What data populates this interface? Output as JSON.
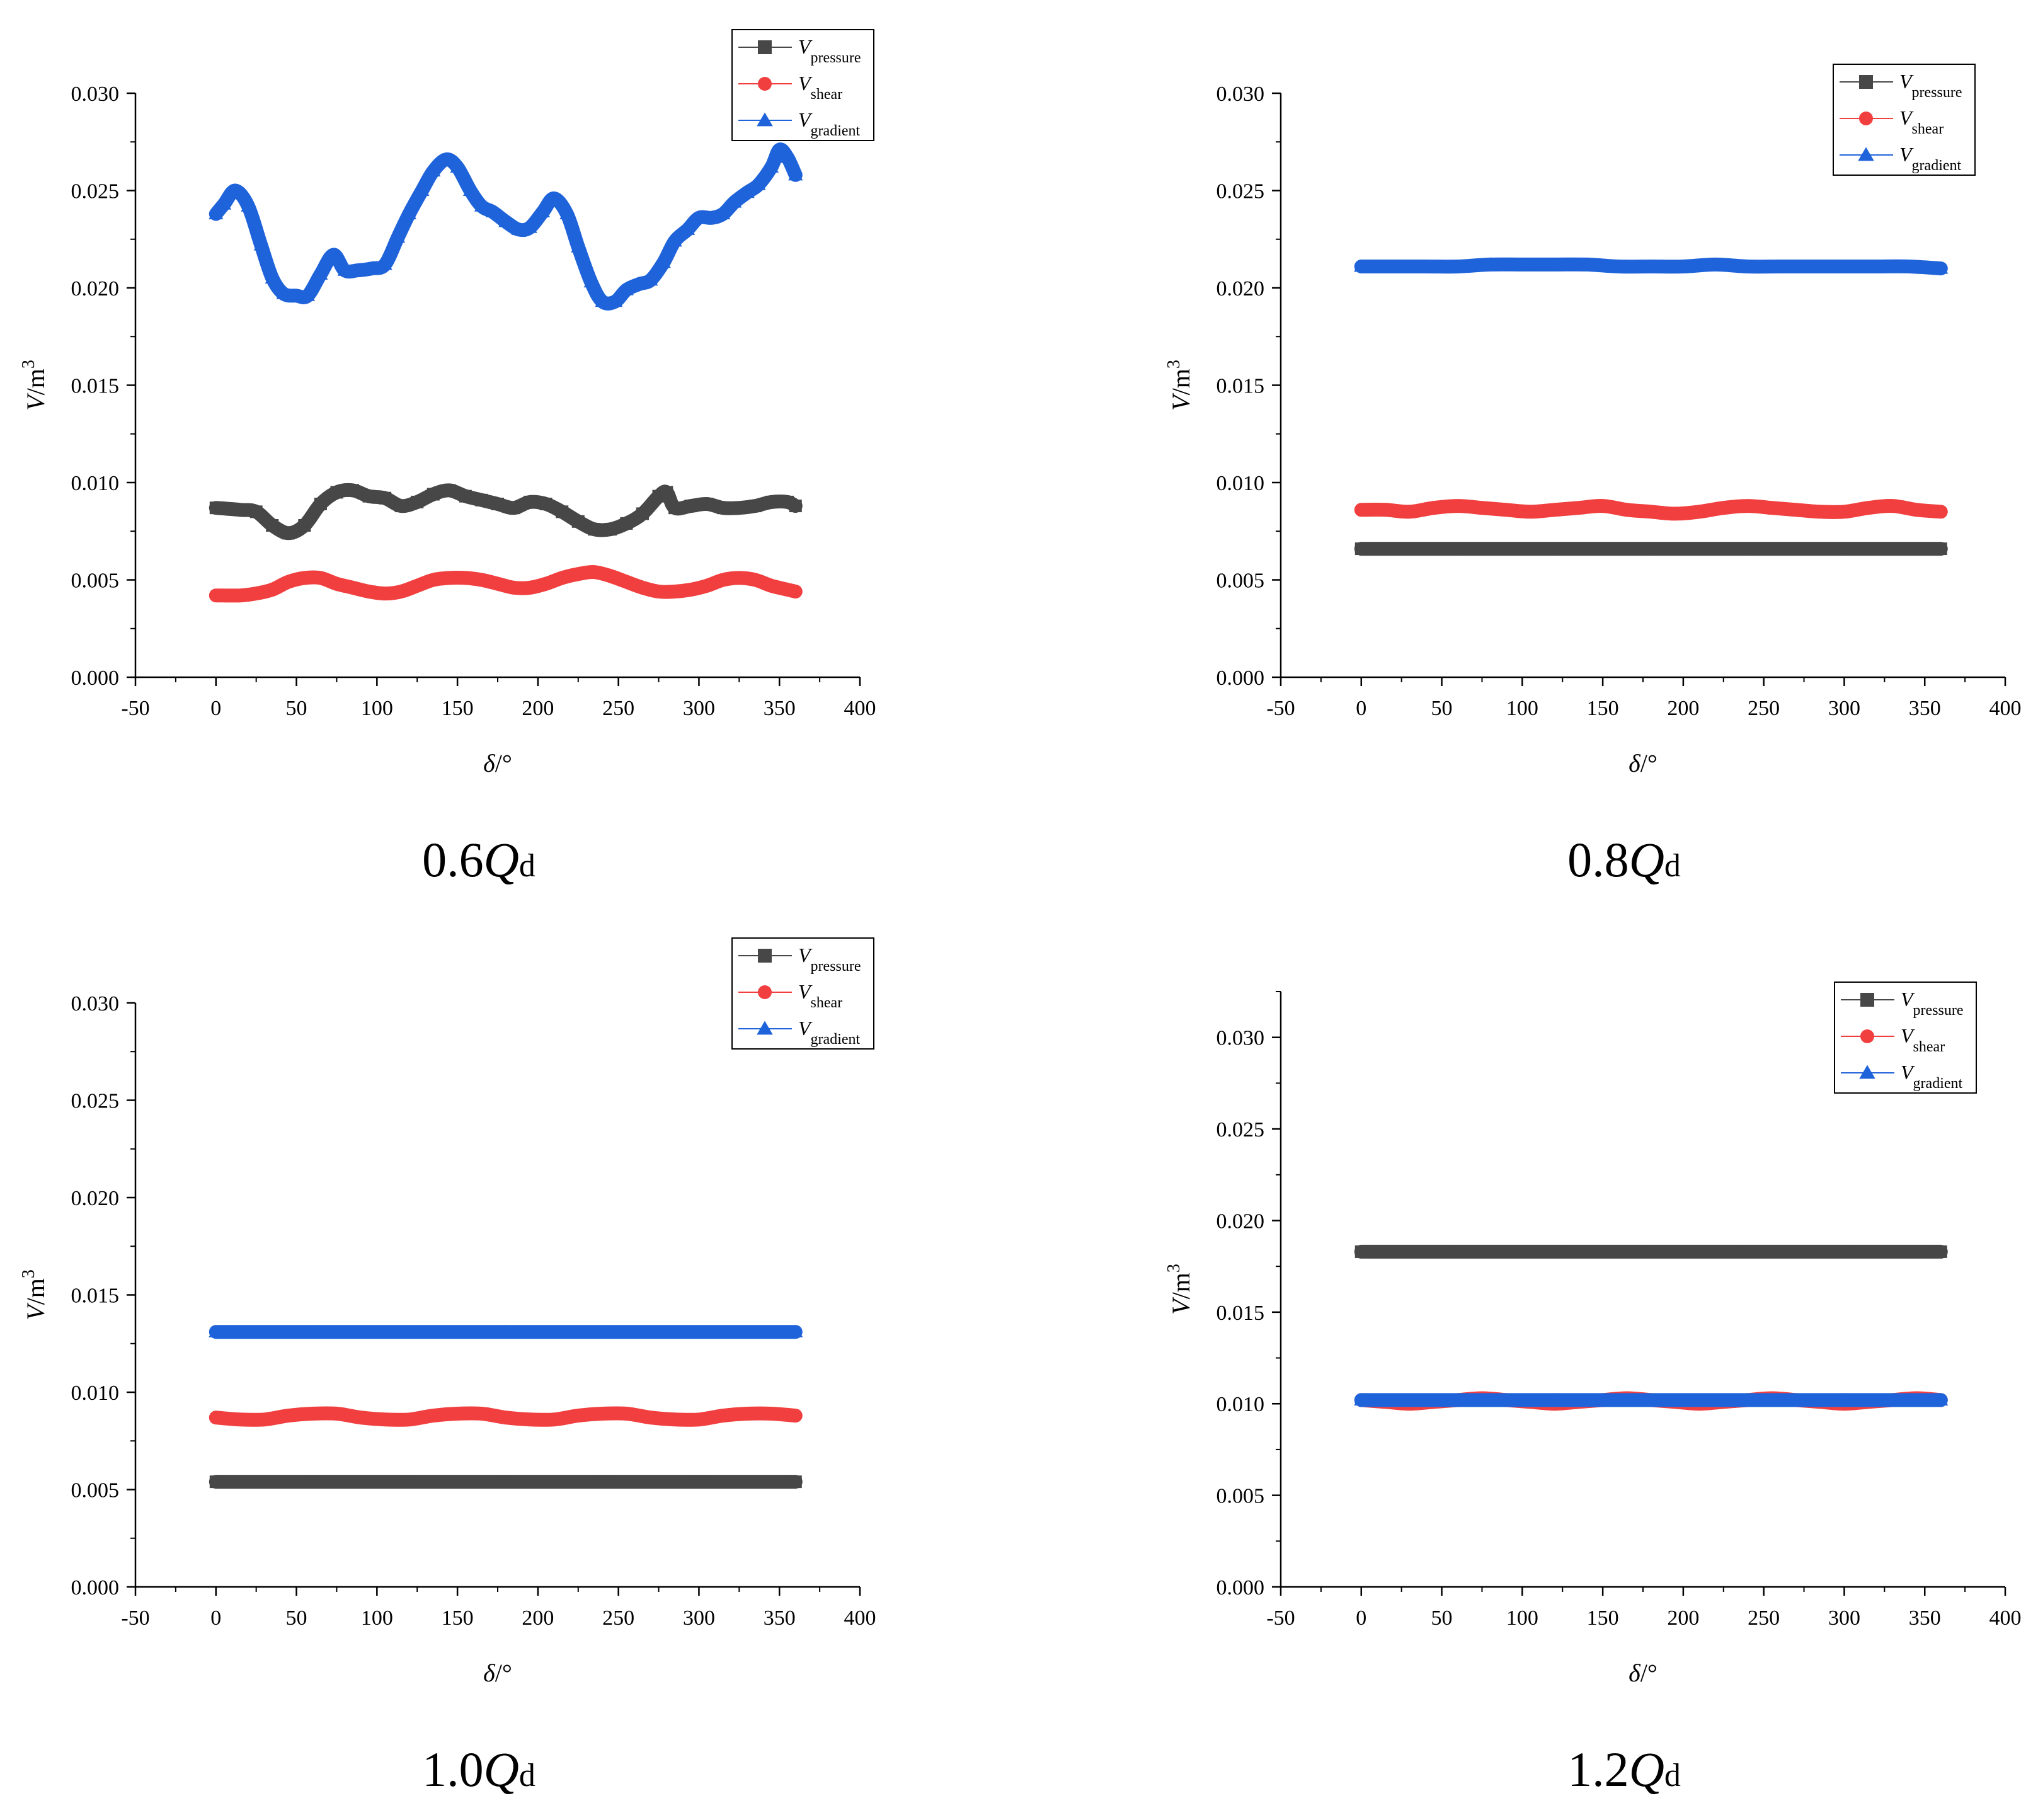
{
  "colors": {
    "pressure": "#474747",
    "shear": "#f13f3f",
    "gradient": "#1f63da",
    "axis": "#000000"
  },
  "chart_data": [
    {
      "type": "line",
      "caption": {
        "prefix": "0.6",
        "q": "Q",
        "sub": "d"
      },
      "xlabel": {
        "sym": "δ",
        "unit": "/°"
      },
      "ylabel": {
        "sym": "V",
        "unit": "/m",
        "sup": "3"
      },
      "xlim": [
        -50,
        400
      ],
      "ylim": [
        0,
        0.03
      ],
      "xticks": [
        -50,
        0,
        50,
        100,
        150,
        200,
        250,
        300,
        350,
        400
      ],
      "xtick_labels": [
        "-50",
        "0",
        "50",
        "100",
        "150",
        "200",
        "250",
        "300",
        "350",
        "400"
      ],
      "yticks": [
        0,
        0.005,
        0.01,
        0.015,
        0.02,
        0.025,
        0.03
      ],
      "ytick_labels": [
        "0.000",
        "0.005",
        "0.010",
        "0.015",
        "0.020",
        "0.025",
        "0.030"
      ],
      "legend_position": "top-right",
      "series": [
        {
          "key": "pressure",
          "sym": "V",
          "sub": "pressure",
          "marker": "square",
          "x": [
            0,
            15,
            25,
            35,
            45,
            55,
            65,
            75,
            85,
            95,
            105,
            115,
            125,
            135,
            145,
            155,
            165,
            175,
            185,
            195,
            205,
            215,
            225,
            235,
            245,
            255,
            265,
            275,
            280,
            285,
            295,
            305,
            315,
            325,
            335,
            345,
            355,
            360
          ],
          "y": [
            0.0087,
            0.0086,
            0.0085,
            0.0078,
            0.0074,
            0.0078,
            0.0089,
            0.0095,
            0.0096,
            0.0093,
            0.0092,
            0.0088,
            0.009,
            0.0094,
            0.0096,
            0.0093,
            0.0091,
            0.0089,
            0.0087,
            0.009,
            0.0089,
            0.0085,
            0.008,
            0.0076,
            0.0076,
            0.0079,
            0.0084,
            0.0093,
            0.0095,
            0.0087,
            0.0088,
            0.0089,
            0.0087,
            0.0087,
            0.0088,
            0.009,
            0.009,
            0.0088
          ]
        },
        {
          "key": "shear",
          "sym": "V",
          "sub": "shear",
          "marker": "circle",
          "x": [
            0,
            15,
            25,
            35,
            45,
            55,
            65,
            75,
            85,
            95,
            105,
            115,
            125,
            135,
            145,
            155,
            165,
            175,
            185,
            195,
            205,
            215,
            225,
            235,
            245,
            255,
            265,
            275,
            285,
            295,
            305,
            315,
            325,
            335,
            345,
            355,
            360
          ],
          "y": [
            0.0042,
            0.0042,
            0.0043,
            0.0045,
            0.0049,
            0.0051,
            0.0051,
            0.0048,
            0.0046,
            0.0044,
            0.0043,
            0.0044,
            0.0047,
            0.005,
            0.0051,
            0.0051,
            0.005,
            0.0048,
            0.0046,
            0.0046,
            0.0048,
            0.0051,
            0.0053,
            0.0054,
            0.0052,
            0.0049,
            0.0046,
            0.0044,
            0.0044,
            0.0045,
            0.0047,
            0.005,
            0.0051,
            0.005,
            0.0047,
            0.0045,
            0.0044
          ]
        },
        {
          "key": "gradient",
          "sym": "V",
          "sub": "gradient",
          "marker": "triangle",
          "x": [
            0,
            5,
            12,
            20,
            28,
            35,
            42,
            50,
            57,
            65,
            73,
            80,
            88,
            97,
            105,
            113,
            120,
            128,
            135,
            143,
            150,
            158,
            165,
            172,
            180,
            188,
            195,
            203,
            210,
            218,
            225,
            233,
            240,
            248,
            255,
            263,
            270,
            278,
            285,
            293,
            300,
            308,
            315,
            322,
            330,
            337,
            345,
            350,
            355,
            360
          ],
          "y": [
            0.0238,
            0.0243,
            0.025,
            0.0242,
            0.0222,
            0.0205,
            0.0197,
            0.0196,
            0.0196,
            0.0207,
            0.0217,
            0.0209,
            0.0209,
            0.021,
            0.0212,
            0.0226,
            0.0238,
            0.025,
            0.026,
            0.0266,
            0.0262,
            0.025,
            0.0242,
            0.0239,
            0.0234,
            0.023,
            0.0231,
            0.0239,
            0.0246,
            0.0238,
            0.0221,
            0.0203,
            0.0193,
            0.0193,
            0.0199,
            0.0202,
            0.0204,
            0.0213,
            0.0224,
            0.023,
            0.0236,
            0.0236,
            0.0238,
            0.0244,
            0.0249,
            0.0253,
            0.0262,
            0.0271,
            0.0267,
            0.0258
          ]
        }
      ]
    },
    {
      "type": "line",
      "caption": {
        "prefix": "0.8",
        "q": "Q",
        "sub": "d"
      },
      "xlabel": {
        "sym": "δ",
        "unit": "/°"
      },
      "ylabel": {
        "sym": "V",
        "unit": "/m",
        "sup": "3"
      },
      "xlim": [
        -50,
        400
      ],
      "ylim": [
        0,
        0.03
      ],
      "xticks": [
        -50,
        0,
        50,
        100,
        150,
        200,
        250,
        300,
        350,
        400
      ],
      "xtick_labels": [
        "-50",
        "0",
        "50",
        "100",
        "150",
        "200",
        "250",
        "300",
        "350",
        "400"
      ],
      "yticks": [
        0,
        0.005,
        0.01,
        0.015,
        0.02,
        0.025,
        0.03
      ],
      "ytick_labels": [
        "0.000",
        "0.005",
        "0.010",
        "0.015",
        "0.020",
        "0.025",
        "0.030"
      ],
      "legend_position": "top-right",
      "series": [
        {
          "key": "pressure",
          "sym": "V",
          "sub": "pressure",
          "marker": "square",
          "x": [
            0,
            60,
            120,
            180,
            240,
            300,
            360
          ],
          "y": [
            0.0066,
            0.0066,
            0.0066,
            0.0066,
            0.0066,
            0.0066,
            0.0066
          ]
        },
        {
          "key": "shear",
          "sym": "V",
          "sub": "shear",
          "marker": "circle",
          "x": [
            0,
            15,
            30,
            45,
            60,
            75,
            90,
            105,
            120,
            135,
            150,
            165,
            180,
            195,
            210,
            225,
            240,
            255,
            270,
            285,
            300,
            315,
            330,
            345,
            360
          ],
          "y": [
            0.0086,
            0.0086,
            0.0085,
            0.0087,
            0.0088,
            0.0087,
            0.0086,
            0.0085,
            0.0086,
            0.0087,
            0.0088,
            0.0086,
            0.0085,
            0.0084,
            0.0085,
            0.0087,
            0.0088,
            0.0087,
            0.0086,
            0.0085,
            0.0085,
            0.0087,
            0.0088,
            0.0086,
            0.0085
          ]
        },
        {
          "key": "gradient",
          "sym": "V",
          "sub": "gradient",
          "marker": "triangle",
          "x": [
            0,
            20,
            40,
            60,
            80,
            100,
            120,
            140,
            160,
            180,
            200,
            220,
            240,
            260,
            280,
            300,
            320,
            340,
            360
          ],
          "y": [
            0.0211,
            0.0211,
            0.0211,
            0.0211,
            0.0212,
            0.0212,
            0.0212,
            0.0212,
            0.0211,
            0.0211,
            0.0211,
            0.0212,
            0.0211,
            0.0211,
            0.0211,
            0.0211,
            0.0211,
            0.0211,
            0.021
          ]
        }
      ]
    },
    {
      "type": "line",
      "caption": {
        "prefix": "1.0",
        "q": "Q",
        "sub": "d"
      },
      "xlabel": {
        "sym": "δ",
        "unit": "/°"
      },
      "ylabel": {
        "sym": "V",
        "unit": "/m",
        "sup": "3"
      },
      "xlim": [
        -50,
        400
      ],
      "ylim": [
        0,
        0.03
      ],
      "xticks": [
        -50,
        0,
        50,
        100,
        150,
        200,
        250,
        300,
        350,
        400
      ],
      "xtick_labels": [
        "-50",
        "0",
        "50",
        "100",
        "150",
        "200",
        "250",
        "300",
        "350",
        "400"
      ],
      "yticks": [
        0,
        0.005,
        0.01,
        0.015,
        0.02,
        0.025,
        0.03
      ],
      "ytick_labels": [
        "0.000",
        "0.005",
        "0.010",
        "0.015",
        "0.020",
        "0.025",
        "0.030"
      ],
      "legend_position": "top-right",
      "series": [
        {
          "key": "pressure",
          "sym": "V",
          "sub": "pressure",
          "marker": "square",
          "x": [
            0,
            60,
            120,
            180,
            240,
            300,
            360
          ],
          "y": [
            0.0054,
            0.0054,
            0.0054,
            0.0054,
            0.0054,
            0.0054,
            0.0054
          ]
        },
        {
          "key": "shear",
          "sym": "V",
          "sub": "shear",
          "marker": "circle",
          "x": [
            0,
            15,
            30,
            45,
            60,
            75,
            90,
            105,
            120,
            135,
            150,
            165,
            180,
            195,
            210,
            225,
            240,
            255,
            270,
            285,
            300,
            315,
            330,
            345,
            360
          ],
          "y": [
            0.0087,
            0.0086,
            0.0086,
            0.0088,
            0.0089,
            0.0089,
            0.0087,
            0.0086,
            0.0086,
            0.0088,
            0.0089,
            0.0089,
            0.0087,
            0.0086,
            0.0086,
            0.0088,
            0.0089,
            0.0089,
            0.0087,
            0.0086,
            0.0086,
            0.0088,
            0.0089,
            0.0089,
            0.0088
          ]
        },
        {
          "key": "gradient",
          "sym": "V",
          "sub": "gradient",
          "marker": "triangle",
          "x": [
            0,
            60,
            120,
            180,
            240,
            300,
            360
          ],
          "y": [
            0.0131,
            0.0131,
            0.0131,
            0.0131,
            0.0131,
            0.0131,
            0.0131
          ]
        }
      ]
    },
    {
      "type": "line",
      "caption": {
        "prefix": "1.2",
        "q": "Q",
        "sub": "d"
      },
      "xlabel": {
        "sym": "δ",
        "unit": "/°"
      },
      "ylabel": {
        "sym": "V",
        "unit": "/m",
        "sup": "3"
      },
      "xlim": [
        -50,
        400
      ],
      "ylim": [
        0,
        0.0325
      ],
      "xticks": [
        -50,
        0,
        50,
        100,
        150,
        200,
        250,
        300,
        350,
        400
      ],
      "xtick_labels": [
        "-50",
        "0",
        "50",
        "100",
        "150",
        "200",
        "250",
        "300",
        "350",
        "400"
      ],
      "yticks": [
        0,
        0.005,
        0.01,
        0.015,
        0.02,
        0.025,
        0.03
      ],
      "ytick_labels": [
        "0.000",
        "0.005",
        "0.010",
        "0.015",
        "0.020",
        "0.025",
        "0.030"
      ],
      "legend_position": "top-right",
      "series": [
        {
          "key": "pressure",
          "sym": "V",
          "sub": "pressure",
          "marker": "square",
          "x": [
            0,
            60,
            120,
            180,
            240,
            300,
            360
          ],
          "y": [
            0.0183,
            0.0183,
            0.0183,
            0.0183,
            0.0183,
            0.0183,
            0.0183
          ]
        },
        {
          "key": "shear",
          "sym": "V",
          "sub": "shear",
          "marker": "circle",
          "x": [
            0,
            15,
            30,
            45,
            60,
            75,
            90,
            105,
            120,
            135,
            150,
            165,
            180,
            195,
            210,
            225,
            240,
            255,
            270,
            285,
            300,
            315,
            330,
            345,
            360
          ],
          "y": [
            0.0102,
            0.0101,
            0.01,
            0.0101,
            0.0102,
            0.0103,
            0.0102,
            0.0101,
            0.01,
            0.0101,
            0.0102,
            0.0103,
            0.0102,
            0.0101,
            0.01,
            0.0101,
            0.0102,
            0.0103,
            0.0102,
            0.0101,
            0.01,
            0.0101,
            0.0102,
            0.0103,
            0.0102
          ]
        },
        {
          "key": "gradient",
          "sym": "V",
          "sub": "gradient",
          "marker": "triangle",
          "x": [
            0,
            60,
            120,
            180,
            240,
            300,
            360
          ],
          "y": [
            0.0102,
            0.0102,
            0.0102,
            0.0102,
            0.0102,
            0.0102,
            0.0102
          ]
        }
      ]
    }
  ]
}
